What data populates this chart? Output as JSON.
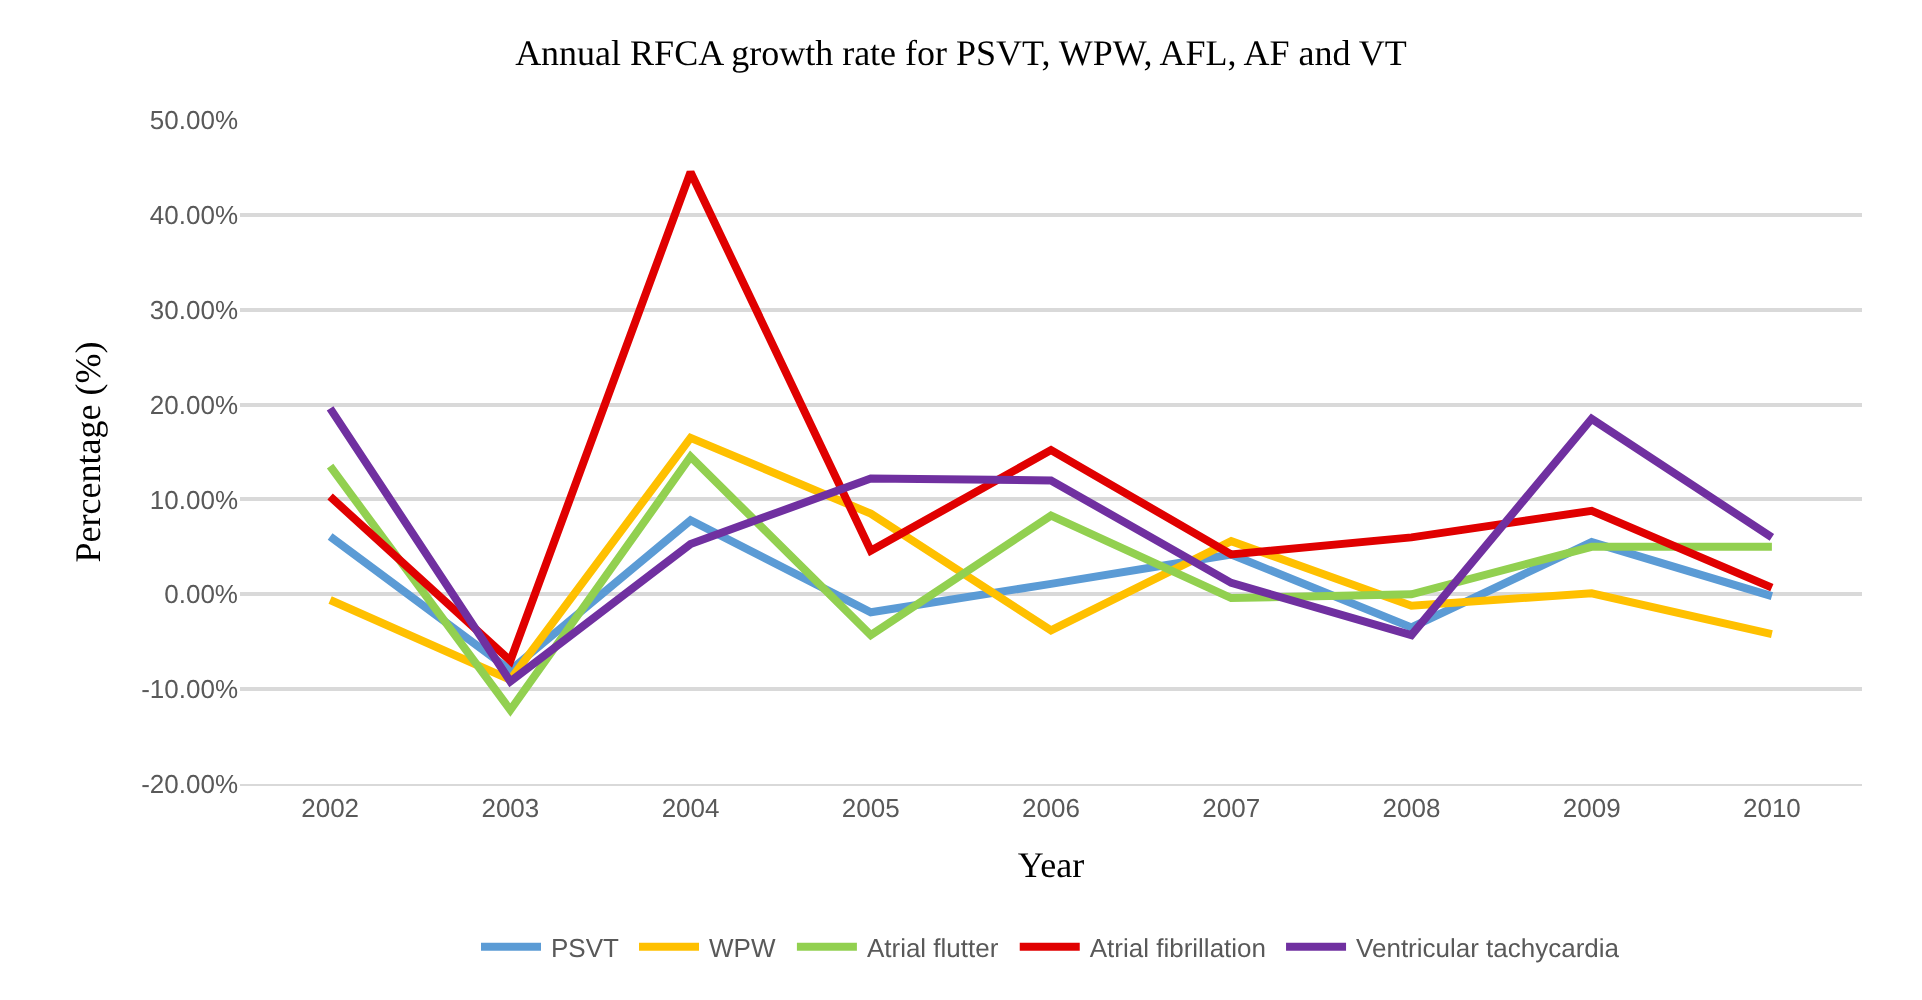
{
  "chart_data": {
    "type": "line",
    "title": "Annual RFCA growth rate for PSVT, WPW, AFL, AF and VT",
    "xlabel": "Year",
    "ylabel": "Percentage (%)",
    "categories": [
      "2002",
      "2003",
      "2004",
      "2005",
      "2006",
      "2007",
      "2008",
      "2009",
      "2010"
    ],
    "series": [
      {
        "name": "PSVT",
        "color": "#5b9bd5",
        "values": [
          6.1,
          -8,
          7.8,
          -1.9,
          1.1,
          4.2,
          -3.5,
          5.5,
          -0.2
        ]
      },
      {
        "name": "WPW",
        "color": "#ffc000",
        "values": [
          -0.6,
          -9,
          16.5,
          8.5,
          -3.8,
          5.6,
          -1.2,
          0.1,
          -4.2
        ]
      },
      {
        "name": "Atrial flutter",
        "color": "#92d050",
        "values": [
          13.5,
          -12.2,
          14.5,
          -4.3,
          8.3,
          -0.4,
          0,
          5,
          5
        ]
      },
      {
        "name": "Atrial fibrillation",
        "color": "#e00000",
        "values": [
          10.3,
          -7,
          44.5,
          4.6,
          15.2,
          4.2,
          6,
          8.8,
          0.7
        ]
      },
      {
        "name": "Ventricular tachycardia",
        "color": "#7030a0",
        "values": [
          19.6,
          -9.2,
          5.3,
          12.2,
          12,
          1.2,
          -4.3,
          18.5,
          6
        ]
      }
    ],
    "ylim": [
      -20,
      50
    ],
    "yticks": [
      {
        "value": -20,
        "label": "-20.00%"
      },
      {
        "value": -10,
        "label": "-10.00%"
      },
      {
        "value": 0,
        "label": "0.00%"
      },
      {
        "value": 10,
        "label": "10.00%"
      },
      {
        "value": 20,
        "label": "20.00%"
      },
      {
        "value": 30,
        "label": "30.00%"
      },
      {
        "value": 40,
        "label": "40.00%"
      },
      {
        "value": 50,
        "label": "50.00%"
      }
    ],
    "grid": "y",
    "legend": "bottom",
    "line_style": "solid",
    "marker": "none"
  }
}
